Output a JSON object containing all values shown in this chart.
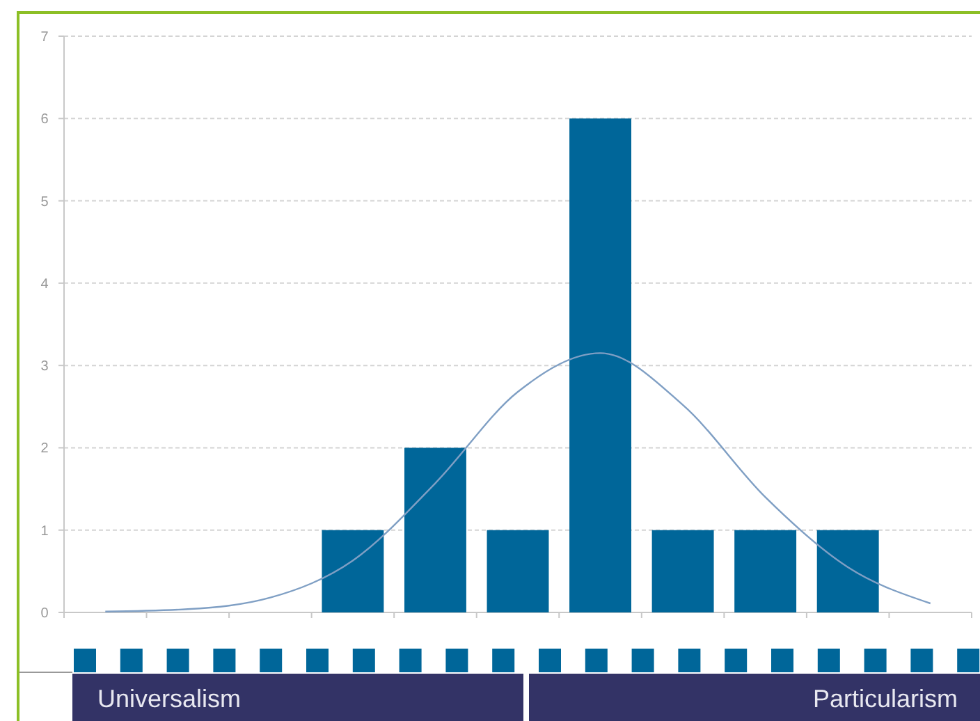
{
  "chart_data": {
    "type": "bar",
    "categories": [
      null,
      null,
      null,
      null,
      null,
      null,
      null,
      null,
      null,
      null,
      null
    ],
    "series": [
      {
        "color": "#006699",
        "values": [
          0,
          0,
          0,
          1,
          2,
          1,
          6,
          1,
          1,
          1,
          0
        ]
      },
      {
        "type": "line",
        "color": "#7f9fc4",
        "marker": "none",
        "values": [
          0.01,
          0.04,
          0.18,
          0.63,
          1.57,
          2.68,
          3.15,
          2.52,
          1.4,
          0.55,
          0.11
        ]
      }
    ],
    "ylim": [
      0,
      7
    ],
    "yticks": [
      0,
      1,
      2,
      3,
      4,
      5,
      6,
      7
    ],
    "grid": "y",
    "annotations": [
      "Universalism",
      "Particularism"
    ]
  }
}
